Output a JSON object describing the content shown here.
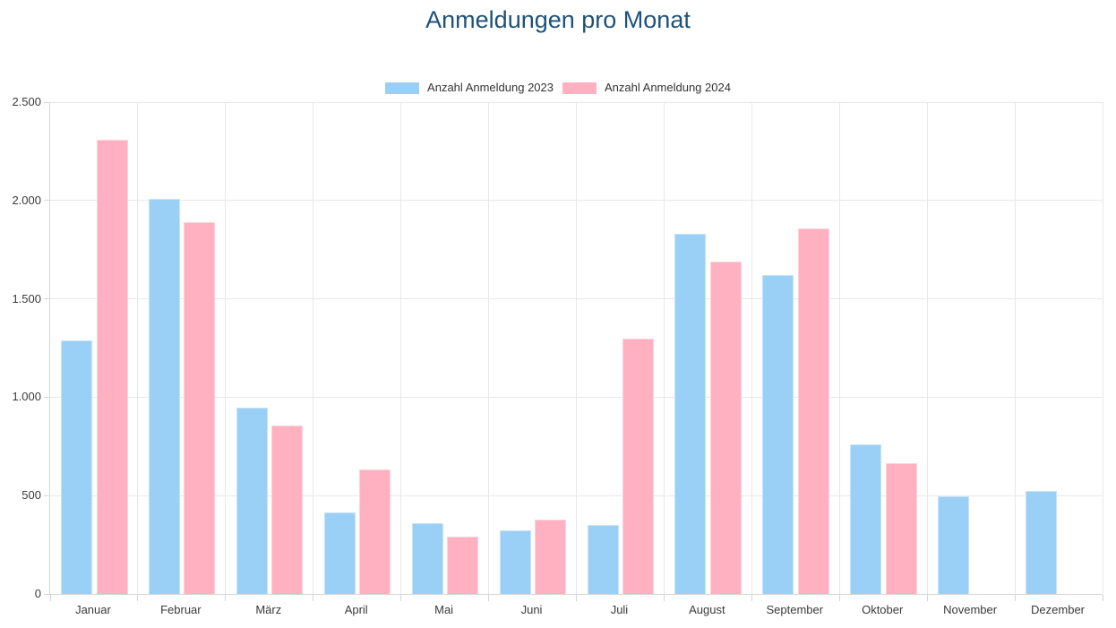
{
  "chart_data": {
    "type": "bar",
    "title": "Anmeldungen pro Monat",
    "title_color": "#1d527b",
    "categories": [
      "Januar",
      "Februar",
      "März",
      "April",
      "Mai",
      "Juni",
      "Juli",
      "August",
      "September",
      "Oktober",
      "November",
      "Dezember"
    ],
    "series": [
      {
        "key": "2023",
        "name": "Anzahl Anmeldung 2023",
        "color": "#9ad0f5",
        "border_color": "#c6e4f9",
        "values": [
          1290,
          2010,
          945,
          415,
          360,
          325,
          350,
          1830,
          1620,
          760,
          495,
          525
        ]
      },
      {
        "key": "2024",
        "name": "Anzahl Anmeldung 2024",
        "color": "#ffb1c1",
        "border_color": "#ffd2db",
        "values": [
          2310,
          1890,
          855,
          635,
          290,
          380,
          1300,
          1690,
          1860,
          665,
          0,
          0
        ]
      }
    ],
    "ylim": [
      0,
      2500
    ],
    "yticks": [
      {
        "value": 0,
        "label": "0"
      },
      {
        "value": 500,
        "label": "500"
      },
      {
        "value": 1000,
        "label": "1.000"
      },
      {
        "value": 1500,
        "label": "1.500"
      },
      {
        "value": 2000,
        "label": "2.000"
      },
      {
        "value": 2500,
        "label": "2.500"
      }
    ],
    "grid": true,
    "legend_position": "top",
    "axis_color": "#d6d6d6",
    "gridline_color": "#e8e8e8",
    "tick_text_color": "#3a3a3a"
  }
}
